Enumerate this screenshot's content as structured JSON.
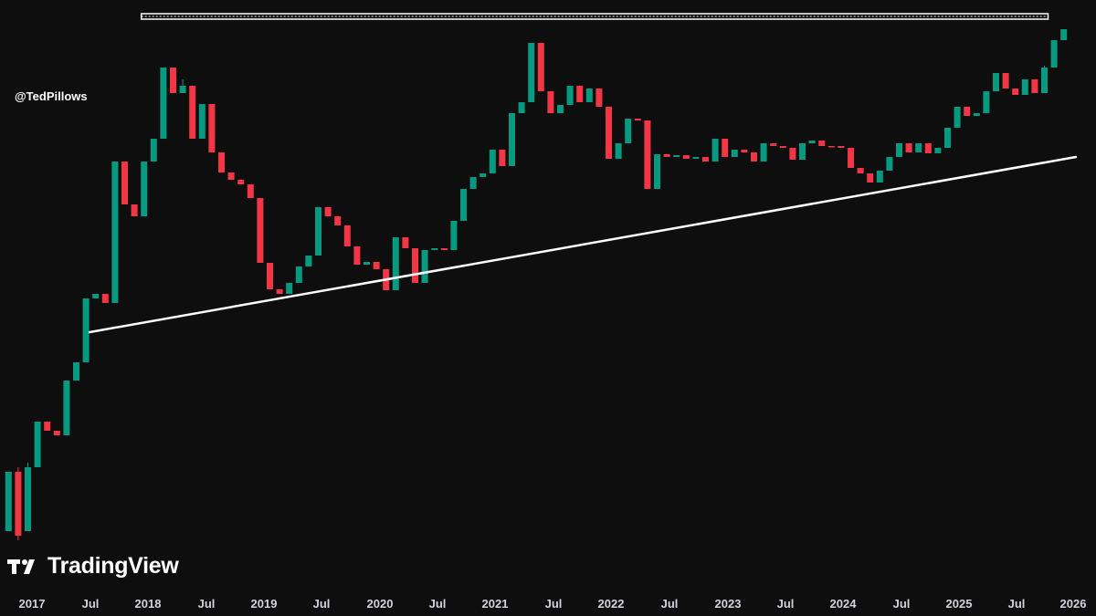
{
  "watermark": {
    "handle": "@TedPillows",
    "brand": "TradingView"
  },
  "colors": {
    "up": "#089981",
    "down": "#f23645",
    "background": "#0e0e0e",
    "annotation": "#ffffff",
    "axis_text": "#d1d4dc"
  },
  "chart_data": {
    "type": "candlestick",
    "interval": "monthly",
    "y_scale": "log",
    "y_axis_shown": false,
    "grid": false,
    "x_ticks": [
      "2017",
      "Jul",
      "2018",
      "Jul",
      "2019",
      "Jul",
      "2020",
      "Jul",
      "2021",
      "Jul",
      "2022",
      "Jul",
      "2023",
      "Jul",
      "2024",
      "Jul",
      "2025",
      "Jul",
      "2026"
    ],
    "candles": [
      [
        570,
        505,
        585,
        505
      ],
      [
        505,
        575,
        500,
        580
      ],
      [
        570,
        500,
        495,
        440
      ],
      [
        500,
        450,
        515,
        445
      ],
      [
        450,
        460,
        470,
        455
      ],
      [
        460,
        465,
        470,
        420
      ],
      [
        465,
        405,
        475,
        405
      ],
      [
        405,
        385,
        400,
        360
      ],
      [
        385,
        315,
        395,
        270
      ],
      [
        315,
        310,
        340,
        290
      ],
      [
        310,
        320,
        330,
        285
      ],
      [
        320,
        165,
        320,
        140
      ],
      [
        165,
        212,
        170,
        205
      ],
      [
        212,
        225,
        235,
        210
      ],
      [
        225,
        165,
        230,
        135
      ],
      [
        165,
        140,
        145,
        135
      ],
      [
        140,
        62,
        145,
        20
      ],
      [
        62,
        90,
        65,
        30
      ],
      [
        90,
        82,
        75,
        25
      ],
      [
        82,
        140,
        148,
        70
      ],
      [
        140,
        102,
        108,
        80
      ],
      [
        102,
        155,
        160,
        95
      ],
      [
        155,
        177,
        182,
        150
      ],
      [
        177,
        185,
        190,
        155
      ],
      [
        185,
        190,
        212,
        168
      ],
      [
        190,
        205,
        238,
        185
      ],
      [
        205,
        276,
        280,
        200
      ],
      [
        276,
        305,
        328,
        272
      ],
      [
        305,
        310,
        320,
        300
      ],
      [
        310,
        298,
        315,
        285
      ],
      [
        298,
        280,
        285,
        250
      ],
      [
        280,
        268,
        275,
        240
      ],
      [
        268,
        215,
        262,
        210
      ],
      [
        215,
        225,
        230,
        185
      ],
      [
        225,
        235,
        252,
        205
      ],
      [
        235,
        258,
        262,
        225
      ],
      [
        258,
        278,
        295,
        250
      ],
      [
        278,
        275,
        282,
        258
      ],
      [
        275,
        283,
        290,
        270
      ],
      [
        283,
        306,
        305,
        282
      ],
      [
        306,
        248,
        304,
        242
      ],
      [
        248,
        260,
        265,
        210
      ],
      [
        260,
        298,
        305,
        235
      ],
      [
        298,
        262,
        268,
        255
      ],
      [
        262,
        260,
        265,
        252
      ],
      [
        260,
        262,
        265,
        255
      ],
      [
        262,
        230,
        268,
        225
      ],
      [
        230,
        195,
        232,
        175
      ],
      [
        195,
        182,
        185,
        160
      ],
      [
        182,
        178,
        188,
        175
      ],
      [
        178,
        152,
        158,
        138
      ],
      [
        152,
        170,
        172,
        148
      ],
      [
        170,
        112,
        168,
        80
      ],
      [
        112,
        100,
        105,
        80
      ],
      [
        100,
        35,
        102,
        32
      ],
      [
        35,
        88,
        90,
        12
      ],
      [
        88,
        112,
        140,
        50
      ],
      [
        112,
        103,
        115,
        75
      ],
      [
        103,
        82,
        110,
        70
      ],
      [
        82,
        100,
        110,
        75
      ],
      [
        100,
        85,
        90,
        68
      ],
      [
        85,
        105,
        110,
        75
      ],
      [
        105,
        162,
        160,
        85
      ],
      [
        162,
        145,
        170,
        135
      ],
      [
        145,
        118,
        150,
        95
      ],
      [
        118,
        120,
        125,
        110
      ],
      [
        120,
        195,
        210,
        115
      ],
      [
        195,
        157,
        165,
        150
      ],
      [
        157,
        160,
        165,
        145
      ],
      [
        160,
        158,
        170,
        152
      ],
      [
        158,
        162,
        165,
        150
      ],
      [
        162,
        160,
        190,
        158
      ],
      [
        160,
        165,
        168,
        155
      ],
      [
        165,
        140,
        170,
        138
      ],
      [
        140,
        160,
        165,
        136
      ],
      [
        160,
        152,
        156,
        150
      ],
      [
        152,
        155,
        158,
        148
      ],
      [
        155,
        165,
        175,
        150
      ],
      [
        165,
        145,
        160,
        145
      ],
      [
        145,
        148,
        158,
        140
      ],
      [
        148,
        150,
        165,
        140
      ],
      [
        150,
        163,
        168,
        145
      ],
      [
        163,
        145,
        168,
        140
      ],
      [
        145,
        142,
        148,
        140
      ],
      [
        142,
        148,
        152,
        140
      ],
      [
        148,
        148,
        155,
        142
      ],
      [
        148,
        150,
        158,
        140
      ],
      [
        150,
        172,
        208,
        145
      ],
      [
        172,
        178,
        182,
        168
      ],
      [
        178,
        188,
        195,
        180
      ],
      [
        188,
        175,
        185,
        145
      ],
      [
        175,
        160,
        170,
        152
      ],
      [
        160,
        145,
        165,
        140
      ],
      [
        145,
        155,
        162,
        138
      ],
      [
        155,
        145,
        150,
        140
      ],
      [
        145,
        156,
        158,
        140
      ],
      [
        156,
        150,
        155,
        145
      ],
      [
        150,
        128,
        148,
        100
      ],
      [
        128,
        105,
        130,
        95
      ],
      [
        105,
        115,
        120,
        102
      ],
      [
        115,
        112,
        130,
        80
      ],
      [
        112,
        88,
        100,
        35
      ],
      [
        88,
        68,
        70,
        45
      ],
      [
        68,
        85,
        88,
        60
      ],
      [
        85,
        92,
        108,
        68
      ],
      [
        92,
        75,
        78,
        60
      ],
      [
        75,
        90,
        93,
        60
      ],
      [
        90,
        62,
        60,
        35
      ],
      [
        62,
        32,
        65,
        28
      ],
      [
        32,
        20,
        20,
        10
      ]
    ],
    "annotations": [
      {
        "type": "horizontal_zone",
        "label": "",
        "from_index": 14,
        "to_index": 107
      },
      {
        "type": "trendline",
        "label": "",
        "from_index": 9,
        "to_index": 107
      }
    ]
  }
}
